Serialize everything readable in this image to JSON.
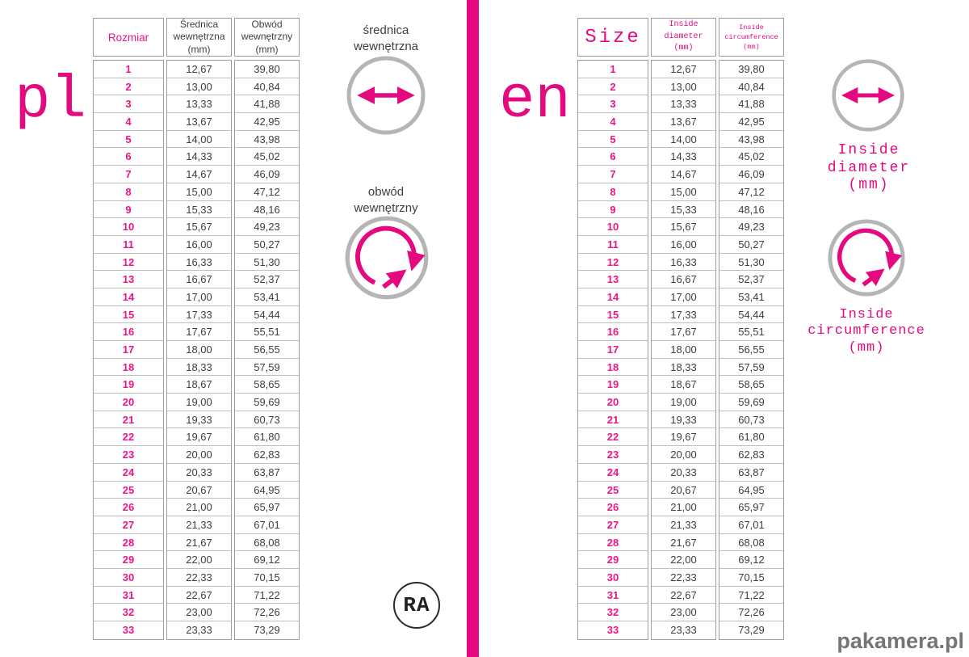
{
  "page": {
    "pl_language_label": "pl",
    "en_language_label": "en",
    "logo_text": "RA",
    "watermark": "pakamera.pl"
  },
  "colors": {
    "pink": "#E5097F",
    "row_number_pink": "#EC1588",
    "dark_text": "#3E3E3E",
    "table_border": "#9C9C9C",
    "row_line": "#BFBFBF",
    "ring_gray": "#B5B5B5",
    "watermark_gray": "#757575"
  },
  "pl_table": {
    "header_size": "Rozmiar",
    "header_diameter": "Średnica\nwewnętrzna\n(mm)",
    "header_circumference": "Obwód\nwewnętrzny\n(mm)"
  },
  "en_table": {
    "header_size": "Size",
    "header_diameter": "Inside\ndiameter\n(mm)",
    "header_circumference": "Inside\ncircumference\n(mm)"
  },
  "pl_legend": {
    "diameter_label": "średnica\nwewnętrzna",
    "circumference_label": "obwód\nwewnętrzny"
  },
  "en_legend": {
    "diameter_label": "Inside\ndiameter\n(mm)",
    "circumference_label": "Inside\ncircumference\n(mm)"
  },
  "chart_data": {
    "type": "table",
    "columns_en": [
      "Size",
      "Inside diameter (mm)",
      "Inside circumference (mm)"
    ],
    "columns_pl": [
      "Rozmiar",
      "Średnica wewnętrzna (mm)",
      "Obwód wewnętrzny (mm)"
    ],
    "rows": [
      [
        "1",
        "12,67",
        "39,80"
      ],
      [
        "2",
        "13,00",
        "40,84"
      ],
      [
        "3",
        "13,33",
        "41,88"
      ],
      [
        "4",
        "13,67",
        "42,95"
      ],
      [
        "5",
        "14,00",
        "43,98"
      ],
      [
        "6",
        "14,33",
        "45,02"
      ],
      [
        "7",
        "14,67",
        "46,09"
      ],
      [
        "8",
        "15,00",
        "47,12"
      ],
      [
        "9",
        "15,33",
        "48,16"
      ],
      [
        "10",
        "15,67",
        "49,23"
      ],
      [
        "11",
        "16,00",
        "50,27"
      ],
      [
        "12",
        "16,33",
        "51,30"
      ],
      [
        "13",
        "16,67",
        "52,37"
      ],
      [
        "14",
        "17,00",
        "53,41"
      ],
      [
        "15",
        "17,33",
        "54,44"
      ],
      [
        "16",
        "17,67",
        "55,51"
      ],
      [
        "17",
        "18,00",
        "56,55"
      ],
      [
        "18",
        "18,33",
        "57,59"
      ],
      [
        "19",
        "18,67",
        "58,65"
      ],
      [
        "20",
        "19,00",
        "59,69"
      ],
      [
        "21",
        "19,33",
        "60,73"
      ],
      [
        "22",
        "19,67",
        "61,80"
      ],
      [
        "23",
        "20,00",
        "62,83"
      ],
      [
        "24",
        "20,33",
        "63,87"
      ],
      [
        "25",
        "20,67",
        "64,95"
      ],
      [
        "26",
        "21,00",
        "65,97"
      ],
      [
        "27",
        "21,33",
        "67,01"
      ],
      [
        "28",
        "21,67",
        "68,08"
      ],
      [
        "29",
        "22,00",
        "69,12"
      ],
      [
        "30",
        "22,33",
        "70,15"
      ],
      [
        "31",
        "22,67",
        "71,22"
      ],
      [
        "32",
        "23,00",
        "72,26"
      ],
      [
        "33",
        "23,33",
        "73,29"
      ]
    ]
  }
}
